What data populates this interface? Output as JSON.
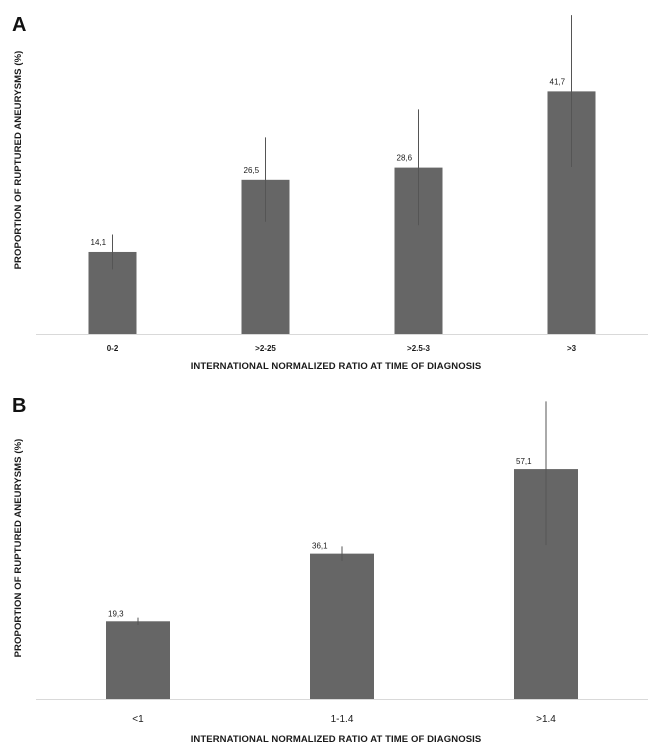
{
  "chart_data": [
    {
      "panel": "A",
      "type": "bar",
      "categories": [
        "0-2",
        ">2-25",
        ">2.5-3",
        ">3"
      ],
      "values": [
        14.1,
        26.5,
        28.6,
        41.7
      ],
      "value_labels": [
        "14,1",
        "26,5",
        "28,6",
        "41,7"
      ],
      "error_bars": [
        [
          11.1,
          17.1
        ],
        [
          19.3,
          33.8
        ],
        [
          18.7,
          38.6
        ],
        [
          28.7,
          54.8
        ]
      ],
      "xlabel": "INTERNATIONAL NORMALIZED RATIO AT TIME OF DIAGNOSIS",
      "ylabel": "PROPORTION OF RUPTURED ANEURYSMS (%)",
      "ylim": [
        0,
        55
      ],
      "grid": false,
      "bar_color": "#666666"
    },
    {
      "panel": "B",
      "type": "bar",
      "categories": [
        "<1",
        "1-1.4",
        ">1.4"
      ],
      "values": [
        19.3,
        36.1,
        57.1
      ],
      "value_labels": [
        "19,3",
        "36,1",
        "57,1"
      ],
      "error_bars": [
        [
          18.4,
          20.2
        ],
        [
          34.3,
          37.9
        ],
        [
          38.2,
          73.9
        ]
      ],
      "xlabel": "INTERNATIONAL NORMALIZED RATIO AT TIME OF DIAGNOSIS",
      "ylabel": "PROPORTION OF RUPTURED ANEURYSMS (%)",
      "ylim": [
        0,
        75
      ],
      "grid": false,
      "bar_color": "#666666"
    }
  ]
}
